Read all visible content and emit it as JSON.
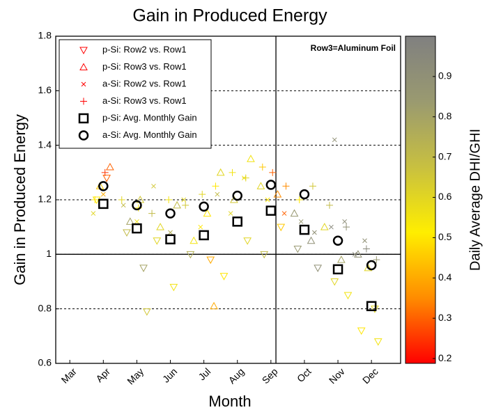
{
  "chart_data": {
    "type": "scatter",
    "title": "Gain in Produced Energy",
    "x_label": "Month",
    "y_label": "Gain in Produced Energy",
    "annotation": "Row3=Aluminum Foil",
    "colorbar_label": "Daily Average DHI/GHI",
    "xlim": [
      2.58,
      12.87
    ],
    "xticks": [
      {
        "value": 3,
        "label": "Mar"
      },
      {
        "value": 4,
        "label": "Apr"
      },
      {
        "value": 5,
        "label": "May"
      },
      {
        "value": 6,
        "label": "Jun"
      },
      {
        "value": 7,
        "label": "Jul"
      },
      {
        "value": 8,
        "label": "Aug"
      },
      {
        "value": 9,
        "label": "Sep"
      },
      {
        "value": 10,
        "label": "Oct"
      },
      {
        "value": 11,
        "label": "Nov"
      },
      {
        "value": 12,
        "label": "Dec"
      }
    ],
    "ylim": [
      0.6,
      1.8
    ],
    "yticks": [
      0.6,
      0.8,
      1,
      1.2,
      1.4,
      1.6,
      1.8
    ],
    "grid": true,
    "hlines": [
      1
    ],
    "vlines": [
      9.15
    ],
    "clim": [
      0.188,
      1.0
    ],
    "cticks": [
      0.2,
      0.3,
      0.4,
      0.5,
      0.6,
      0.7,
      0.8,
      0.9
    ],
    "colormap": [
      "#ff0000",
      "#ff8c00",
      "#ffee00",
      "#c8c040",
      "#9a9a70",
      "#808080"
    ],
    "legend": "upper left",
    "series": [
      {
        "name": "p-Si: Row2 vs. Row1",
        "marker": "triangle-down",
        "color": "#ff0000",
        "x": [
          3.8,
          4.1,
          4.7,
          5.2,
          5.3,
          5.6,
          6.1,
          6.6,
          7.2,
          7.6,
          8.3,
          8.8,
          9.3,
          9.8,
          10.4,
          10.9,
          11.3,
          11.7,
          12.1,
          12.2
        ],
        "values": [
          1.2,
          1.28,
          1.08,
          0.95,
          0.79,
          1.05,
          0.88,
          1.0,
          0.98,
          0.92,
          1.05,
          1.0,
          1.1,
          1.02,
          0.95,
          0.9,
          0.85,
          0.72,
          0.8,
          0.68
        ],
        "dhi": [
          0.5,
          0.3,
          0.7,
          0.8,
          0.65,
          0.6,
          0.55,
          0.75,
          0.4,
          0.5,
          0.6,
          0.7,
          0.45,
          0.85,
          0.9,
          0.6,
          0.55,
          0.5,
          0.6,
          0.55
        ]
      },
      {
        "name": "p-Si: Row3 vs. Row1",
        "marker": "triangle-up",
        "color": "#ff0000",
        "x": [
          3.9,
          4.2,
          4.8,
          5.1,
          5.7,
          6.2,
          6.7,
          7.1,
          7.5,
          7.9,
          8.4,
          8.7,
          9.2,
          9.7,
          10.2,
          10.6,
          11.1,
          11.6,
          11.9,
          7.3
        ],
        "values": [
          1.25,
          1.32,
          1.12,
          1.2,
          1.1,
          1.18,
          1.05,
          1.15,
          1.3,
          1.2,
          1.35,
          1.25,
          1.22,
          1.15,
          1.05,
          1.1,
          0.98,
          1.0,
          0.95,
          0.81
        ],
        "dhi": [
          0.45,
          0.3,
          0.8,
          0.65,
          0.6,
          0.7,
          0.55,
          0.5,
          0.6,
          0.65,
          0.55,
          0.6,
          0.35,
          0.85,
          0.9,
          0.6,
          0.8,
          0.9,
          0.6,
          0.4
        ]
      },
      {
        "name": "a-Si: Row2 vs. Row1",
        "marker": "cross",
        "color": "#ff0000",
        "x": [
          3.7,
          4.0,
          4.6,
          5.0,
          5.5,
          6.0,
          6.4,
          6.9,
          7.4,
          7.8,
          8.2,
          8.9,
          9.4,
          9.9,
          10.3,
          10.8,
          11.2,
          11.5,
          11.8,
          10.9
        ],
        "values": [
          1.15,
          1.22,
          1.18,
          1.12,
          1.25,
          1.08,
          1.2,
          1.1,
          1.22,
          1.15,
          1.28,
          1.2,
          1.15,
          1.12,
          1.08,
          1.1,
          1.12,
          1.0,
          1.05,
          1.42
        ],
        "dhi": [
          0.6,
          0.4,
          0.7,
          0.55,
          0.65,
          0.75,
          0.6,
          0.5,
          0.7,
          0.6,
          0.55,
          0.5,
          0.3,
          0.85,
          0.9,
          0.95,
          0.92,
          0.95,
          0.9,
          0.9
        ]
      },
      {
        "name": "a-Si: Row3 vs. Row1",
        "marker": "plus",
        "color": "#ff0000",
        "x": [
          3.75,
          4.05,
          4.55,
          5.05,
          5.45,
          5.95,
          6.45,
          6.95,
          7.35,
          7.85,
          8.25,
          8.75,
          9.05,
          9.45,
          9.85,
          10.25,
          10.75,
          11.25,
          11.85,
          12.15
        ],
        "values": [
          1.2,
          1.3,
          1.2,
          1.17,
          1.15,
          1.2,
          1.18,
          1.22,
          1.25,
          1.3,
          1.28,
          1.32,
          1.3,
          1.25,
          1.2,
          1.25,
          1.18,
          1.1,
          1.02,
          0.98
        ],
        "dhi": [
          0.5,
          0.25,
          0.6,
          0.5,
          0.7,
          0.55,
          0.65,
          0.6,
          0.5,
          0.55,
          0.6,
          0.45,
          0.3,
          0.35,
          0.5,
          0.65,
          0.7,
          0.9,
          0.95,
          0.85
        ]
      },
      {
        "name": "p-Si: Avg. Monthly Gain",
        "marker": "square",
        "color": "#000000",
        "x": [
          4,
          5,
          6,
          7,
          8,
          9,
          10,
          11,
          12
        ],
        "values": [
          1.185,
          1.095,
          1.055,
          1.07,
          1.12,
          1.16,
          1.09,
          0.945,
          0.81
        ]
      },
      {
        "name": "a-Si: Avg. Monthly Gain",
        "marker": "circle",
        "color": "#000000",
        "x": [
          4,
          5,
          6,
          7,
          8,
          9,
          10,
          11,
          12
        ],
        "values": [
          1.25,
          1.18,
          1.15,
          1.175,
          1.215,
          1.255,
          1.22,
          1.05,
          0.96
        ]
      }
    ]
  }
}
